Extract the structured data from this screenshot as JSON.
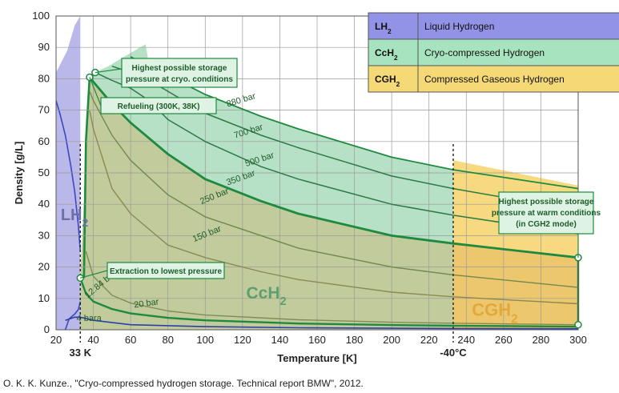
{
  "caption": "O. K. K. Kunze., \"Cryo-compressed hydrogen storage. Technical report BMW\", 2012.",
  "chart_data": {
    "type": "line",
    "title": "",
    "xlabel": "Temperature [K]",
    "ylabel": "Density [g/L]",
    "xlim": [
      20,
      300
    ],
    "ylim": [
      0,
      100
    ],
    "grid": true,
    "x_ticks": [
      20,
      40,
      60,
      80,
      100,
      120,
      140,
      160,
      180,
      200,
      220,
      240,
      260,
      280,
      300
    ],
    "y_ticks": [
      0,
      10,
      20,
      30,
      40,
      50,
      60,
      70,
      80,
      90,
      100
    ],
    "special_ticks": [
      {
        "x": 33,
        "label": "33 K"
      },
      {
        "x": 233,
        "label": "-40°C"
      }
    ],
    "series": [
      {
        "name": "4 bara",
        "x": [
          25,
          28,
          30,
          33,
          40,
          60,
          100,
          150,
          200,
          233,
          300
        ],
        "values": [
          3.0,
          3.6,
          4.0,
          4.0,
          3.0,
          1.6,
          1.0,
          0.64,
          0.48,
          0.41,
          0.32
        ]
      },
      {
        "name": "12.84 bar",
        "x": [
          33,
          36,
          40,
          50,
          60,
          80,
          100,
          150,
          200,
          233,
          300
        ],
        "values": [
          16.5,
          11.5,
          9.0,
          6.6,
          5.2,
          3.8,
          3.0,
          2.0,
          1.5,
          1.3,
          1.0
        ]
      },
      {
        "name": "20 bar",
        "x": [
          36,
          40,
          50,
          60,
          80,
          100,
          150,
          200,
          233,
          300
        ],
        "values": [
          25.0,
          17.0,
          11.0,
          8.5,
          6.0,
          4.7,
          3.2,
          2.4,
          2.1,
          1.6
        ]
      },
      {
        "name": "150 bar",
        "x": [
          38,
          40,
          50,
          60,
          80,
          100,
          130,
          150,
          200,
          233,
          300
        ],
        "values": [
          70,
          64,
          45,
          37,
          27,
          23,
          18.5,
          16,
          12,
          10.5,
          8.3
        ]
      },
      {
        "name": "250 bar",
        "x": [
          38,
          40,
          50,
          60,
          80,
          100,
          130,
          150,
          200,
          233,
          300
        ],
        "values": [
          76,
          73,
          62,
          54,
          43,
          36,
          30,
          26,
          20,
          17.5,
          13.5
        ]
      },
      {
        "name": "350 bar",
        "x": [
          38,
          40,
          50,
          60,
          80,
          100,
          130,
          150,
          200,
          233,
          300
        ],
        "values": [
          80.5,
          79,
          72,
          66,
          56,
          48,
          41,
          37,
          30,
          27.5,
          23
        ]
      },
      {
        "name": "500 bar",
        "x": [
          41,
          50,
          60,
          70,
          80,
          100,
          130,
          150,
          200,
          233,
          300
        ],
        "values": [
          82,
          79.5,
          77,
          73,
          67,
          60,
          52,
          48,
          40,
          36.5,
          30.5
        ]
      },
      {
        "name": "700 bar",
        "x": [
          50,
          60,
          70,
          80,
          100,
          130,
          150,
          200,
          233,
          300
        ],
        "values": [
          84,
          82,
          79.5,
          76,
          69,
          62,
          58,
          49,
          45,
          38
        ]
      },
      {
        "name": "880 bar",
        "x": [
          60,
          70,
          80,
          100,
          130,
          150,
          200,
          233,
          300
        ],
        "values": [
          87,
          84,
          81,
          75,
          68,
          64,
          55,
          51,
          45
        ]
      }
    ],
    "regions": [
      {
        "label": "LH2",
        "name": "Liquid Hydrogen",
        "color": "#8c88d8"
      },
      {
        "label": "CcH2",
        "name": "Cryo-compressed Hydrogen",
        "color": "#9ed7b4"
      },
      {
        "label": "CGH2",
        "name": "Compressed Gaseous Hydrogen",
        "color": "#f6d36a"
      }
    ],
    "annotations": [
      "Highest possible storage pressure at cryo. conditions",
      "Refueling (300K, 38K)",
      "Extraction to lowest pressure",
      "Highest possible storage pressure at warm conditions (in CGH2 mode)"
    ],
    "points": [
      {
        "x": 38,
        "y": 80.5
      },
      {
        "x": 41,
        "y": 82
      },
      {
        "x": 33,
        "y": 16.5
      },
      {
        "x": 300,
        "y": 23
      },
      {
        "x": 300,
        "y": 1.6
      }
    ],
    "legend": {
      "placement": "top-right"
    }
  }
}
